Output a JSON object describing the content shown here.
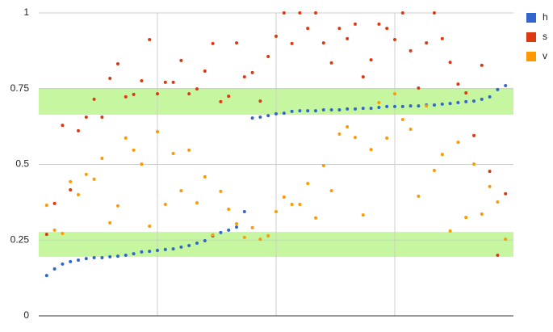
{
  "chart_data": {
    "type": "scatter",
    "x": [
      1,
      2,
      3,
      4,
      5,
      6,
      7,
      8,
      9,
      10,
      11,
      12,
      13,
      14,
      15,
      16,
      17,
      18,
      19,
      20,
      21,
      22,
      23,
      24,
      25,
      26,
      27,
      28,
      29,
      30,
      31,
      32,
      33,
      34,
      35,
      36,
      37,
      38,
      39,
      40,
      41,
      42,
      43,
      44,
      45,
      46,
      47,
      48,
      49,
      50,
      51,
      52,
      53,
      54,
      55,
      56,
      57,
      58,
      59
    ],
    "xlim": [
      0,
      60
    ],
    "xticks": [
      15,
      30,
      45
    ],
    "ylim": [
      0,
      1
    ],
    "yticks": [
      0,
      0.25,
      0.5,
      0.75,
      1
    ],
    "grid": true,
    "legend": "right",
    "bands": [
      [
        0.195,
        0.277
      ],
      [
        0.664,
        0.752
      ]
    ],
    "band_color": "#c6f7a0",
    "series": [
      {
        "name": "h",
        "color": "#3366cc",
        "values": [
          0.133,
          0.155,
          0.171,
          0.179,
          0.184,
          0.189,
          0.192,
          0.192,
          0.195,
          0.197,
          0.2,
          0.205,
          0.211,
          0.213,
          0.216,
          0.219,
          0.221,
          0.227,
          0.232,
          0.24,
          0.248,
          0.264,
          0.275,
          0.283,
          0.293,
          0.344,
          0.653,
          0.656,
          0.661,
          0.667,
          0.669,
          0.675,
          0.677,
          0.677,
          0.677,
          0.68,
          0.68,
          0.68,
          0.683,
          0.683,
          0.685,
          0.685,
          0.688,
          0.691,
          0.691,
          0.691,
          0.693,
          0.693,
          0.696,
          0.696,
          0.699,
          0.701,
          0.704,
          0.707,
          0.709,
          0.715,
          0.723,
          0.747,
          0.76
        ]
      },
      {
        "name": "s",
        "color": "#dc3912",
        "values": [
          0.269,
          0.371,
          0.629,
          0.416,
          0.611,
          0.656,
          0.715,
          0.656,
          0.784,
          0.832,
          0.723,
          0.731,
          0.776,
          0.912,
          0.733,
          0.771,
          0.771,
          0.843,
          0.733,
          0.749,
          0.808,
          0.899,
          0.707,
          0.725,
          0.901,
          0.789,
          0.803,
          0.709,
          0.856,
          0.923,
          1.0,
          0.899,
          1.0,
          0.949,
          1.0,
          0.901,
          0.835,
          0.949,
          0.915,
          0.963,
          0.789,
          0.845,
          0.963,
          0.949,
          0.912,
          1.0,
          0.875,
          0.752,
          0.901,
          1.0,
          0.915,
          0.837,
          0.765,
          0.736,
          0.595,
          0.827,
          0.477,
          0.2,
          0.403
        ]
      },
      {
        "name": "v",
        "color": "#ff9900",
        "values": [
          0.365,
          0.283,
          0.272,
          0.443,
          0.4,
          0.467,
          0.451,
          0.52,
          0.307,
          0.363,
          0.587,
          0.547,
          0.501,
          0.296,
          0.608,
          0.368,
          0.536,
          0.413,
          0.547,
          0.373,
          0.459,
          0.267,
          0.411,
          0.352,
          0.304,
          0.259,
          0.291,
          0.253,
          0.264,
          0.344,
          0.392,
          0.368,
          0.368,
          0.437,
          0.323,
          0.496,
          0.413,
          0.6,
          0.624,
          0.589,
          0.333,
          0.549,
          0.704,
          0.587,
          0.733,
          0.648,
          0.616,
          0.395,
          0.693,
          0.48,
          0.533,
          0.28,
          0.573,
          0.325,
          0.501,
          0.336,
          0.427,
          0.376,
          0.253
        ]
      }
    ]
  }
}
